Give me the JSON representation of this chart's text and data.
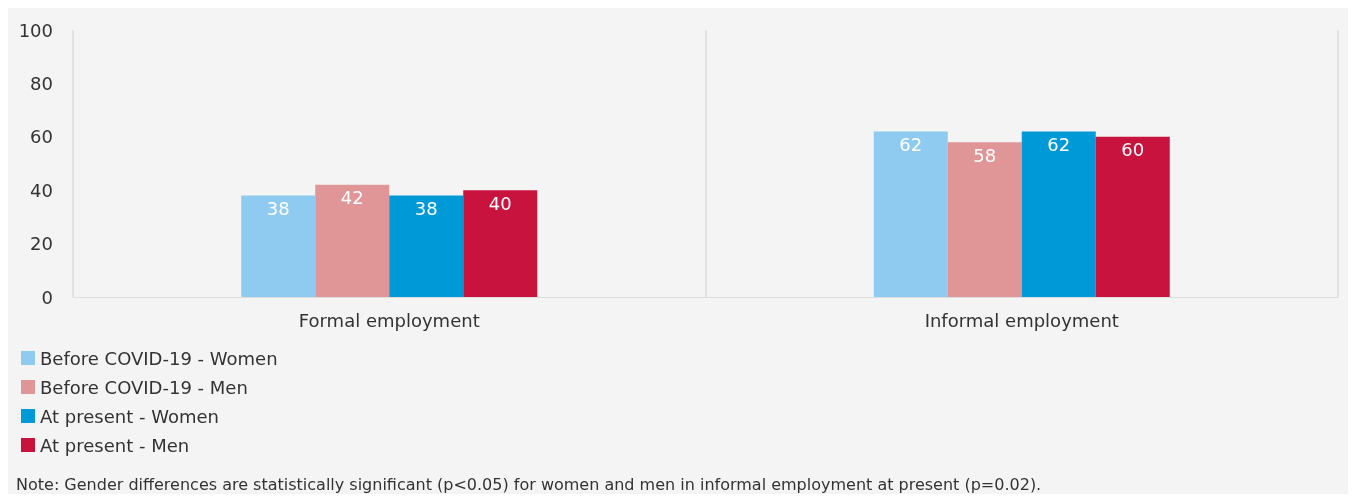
{
  "chart_data": {
    "type": "bar",
    "categories": [
      "Formal employment",
      "Informal employment"
    ],
    "series": [
      {
        "name": "Before COVID-19 - Women",
        "color": "#8fcaf0",
        "values": [
          38,
          62
        ]
      },
      {
        "name": "Before COVID-19 - Men",
        "color": "#e09597",
        "values": [
          42,
          58
        ]
      },
      {
        "name": "At present - Women",
        "color": "#0099d8",
        "values": [
          38,
          62
        ]
      },
      {
        "name": "At present - Men",
        "color": "#c8133f",
        "values": [
          40,
          60
        ]
      }
    ],
    "ylim": [
      0,
      100
    ],
    "yticks": [
      0,
      20,
      40,
      60,
      80,
      100
    ],
    "grid": "x",
    "legend": "bottom left",
    "data_labels": true,
    "annotations": [
      "Note: Gender differences are statistically significant (p<0.05) for women and men in informal employment at present (p=0.02)."
    ]
  }
}
